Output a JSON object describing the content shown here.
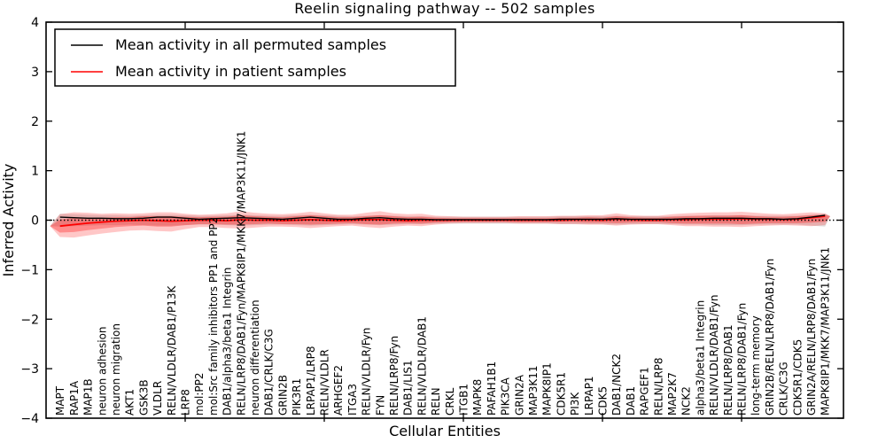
{
  "chart_data": {
    "type": "line",
    "title": "Reelin signaling pathway -- 502 samples",
    "xlabel": "Cellular Entities",
    "ylabel": "Inferred Activity",
    "ylim": [
      -4,
      4
    ],
    "yticks": [
      "4",
      "3",
      "2",
      "1",
      "0",
      "−1",
      "−2",
      "−3",
      "−4"
    ],
    "ytick_values": [
      4,
      3,
      2,
      1,
      0,
      -1,
      -2,
      -3,
      -4
    ],
    "xtick_values": [
      10,
      20,
      30,
      40,
      50
    ],
    "grid": false,
    "legend_position": "upper left",
    "zero_line": "dotted",
    "categories": [
      "MAPT",
      "RAP1A",
      "MAP1B",
      "neuron adhesion",
      "neuron migration",
      "AKT1",
      "GSK3B",
      "VLDLR",
      "RELN/VLDLR/DAB1/P13K",
      "LRP8",
      "mol:PP2",
      "mol:Src family inhibitors PP1 and PP2",
      "DAB1/alpha3/beta1 Integrin",
      "RELN/LRP8/DAB1/Fyn/MAPK8IP1/MKK7/MAP3K11/JNK1",
      "neuron differentiation",
      "DAB1/CRLK/C3G",
      "GRIN2B",
      "PIK3R1",
      "LRPAP1/LRP8",
      "RELN/VLDLR",
      "ARHGEF2",
      "ITGA3",
      "RELN/VLDLR/Fyn",
      "FYN",
      "RELN/LRP8/Fyn",
      "DAB1/LIS1",
      "RELN/VLDLR/DAB1",
      "RELN",
      "CRKL",
      "ITGB1",
      "MAPK8",
      "PAFAH1B1",
      "PIK3CA",
      "GRIN2A",
      "MAP3K11",
      "MAPK8IP1",
      "CDK5R1",
      "PI3K",
      "LRPAP1",
      "CDK5",
      "DAB1/NCK2",
      "DAB1",
      "RAPGEF1",
      "RELN/LRP8",
      "MAP2K7",
      "NCK2",
      "alpha3/beta1 Integrin",
      "RELN/VLDLR/DAB1/Fyn",
      "RELN/LRP8/DAB1",
      "RELN/LRP8/DAB1/Fyn",
      "long-term memory",
      "GRIN2B/RELN/LRP8/DAB1/Fyn",
      "CRLK/C3G",
      "CDK5R1/CDK5",
      "GRIN2A/RELN/LRP8/DAB1/Fyn",
      "MAPK8IP1/MKK7/MAP3K11/JNK1"
    ],
    "series": [
      {
        "name": "Mean activity in all permuted samples",
        "color": "#000000",
        "values": [
          0.06,
          0.05,
          0.04,
          0.04,
          0.03,
          0.03,
          0.04,
          0.06,
          0.06,
          0.04,
          0.02,
          0.03,
          0.04,
          0.05,
          0.04,
          0.03,
          0.02,
          0.04,
          0.06,
          0.04,
          0.02,
          0.02,
          0.04,
          0.05,
          0.03,
          0.02,
          0.02,
          0.01,
          0.01,
          0.01,
          0.01,
          0.01,
          0.01,
          0.01,
          0.01,
          0.01,
          0.02,
          0.02,
          0.02,
          0.02,
          0.03,
          0.02,
          0.02,
          0.02,
          0.02,
          0.03,
          0.03,
          0.04,
          0.04,
          0.04,
          0.03,
          0.03,
          0.02,
          0.03,
          0.06,
          0.1
        ]
      },
      {
        "name": "Mean activity in patient samples",
        "color": "#ff0000",
        "values": [
          -0.12,
          -0.09,
          -0.06,
          -0.04,
          -0.02,
          -0.01,
          0.0,
          -0.01,
          -0.02,
          -0.01,
          0.0,
          0.0,
          -0.01,
          0.01,
          0.0,
          0.0,
          -0.01,
          0.0,
          0.01,
          0.0,
          -0.01,
          0.0,
          0.01,
          0.01,
          0.0,
          -0.01,
          0.0,
          0.0,
          0.0,
          0.0,
          0.0,
          0.0,
          0.0,
          0.0,
          0.0,
          0.0,
          0.0,
          0.01,
          0.01,
          0.0,
          0.02,
          0.01,
          0.0,
          0.0,
          0.01,
          0.01,
          0.02,
          0.02,
          0.02,
          0.03,
          0.02,
          0.02,
          0.01,
          0.02,
          0.05,
          0.08
        ]
      }
    ],
    "patient_band_outer_upper": [
      0.12,
      0.16,
      0.15,
      0.13,
      0.14,
      0.13,
      0.14,
      0.16,
      0.16,
      0.13,
      0.11,
      0.12,
      0.14,
      0.18,
      0.15,
      0.13,
      0.12,
      0.14,
      0.17,
      0.14,
      0.11,
      0.11,
      0.15,
      0.18,
      0.14,
      0.12,
      0.13,
      0.09,
      0.08,
      0.07,
      0.07,
      0.07,
      0.07,
      0.08,
      0.08,
      0.08,
      0.09,
      0.09,
      0.1,
      0.1,
      0.14,
      0.1,
      0.09,
      0.09,
      0.12,
      0.14,
      0.15,
      0.16,
      0.16,
      0.17,
      0.15,
      0.13,
      0.12,
      0.14,
      0.16,
      0.14
    ],
    "patient_band_outer_lower": [
      -0.34,
      -0.35,
      -0.31,
      -0.27,
      -0.24,
      -0.21,
      -0.2,
      -0.22,
      -0.23,
      -0.18,
      -0.14,
      -0.14,
      -0.16,
      -0.17,
      -0.15,
      -0.13,
      -0.13,
      -0.14,
      -0.16,
      -0.14,
      -0.12,
      -0.11,
      -0.14,
      -0.16,
      -0.13,
      -0.11,
      -0.12,
      -0.09,
      -0.07,
      -0.06,
      -0.06,
      -0.06,
      -0.06,
      -0.07,
      -0.07,
      -0.07,
      -0.08,
      -0.08,
      -0.09,
      -0.09,
      -0.11,
      -0.09,
      -0.08,
      -0.08,
      -0.1,
      -0.12,
      -0.12,
      -0.13,
      -0.13,
      -0.14,
      -0.12,
      -0.11,
      -0.1,
      -0.11,
      -0.12,
      -0.1
    ],
    "patient_band_inner_upper": [
      0.01,
      0.05,
      0.05,
      0.05,
      0.06,
      0.06,
      0.08,
      0.08,
      0.08,
      0.07,
      0.06,
      0.07,
      0.07,
      0.1,
      0.08,
      0.07,
      0.06,
      0.08,
      0.1,
      0.08,
      0.06,
      0.06,
      0.08,
      0.1,
      0.08,
      0.06,
      0.07,
      0.05,
      0.04,
      0.04,
      0.04,
      0.04,
      0.04,
      0.04,
      0.04,
      0.04,
      0.05,
      0.05,
      0.06,
      0.05,
      0.08,
      0.06,
      0.05,
      0.05,
      0.07,
      0.08,
      0.09,
      0.09,
      0.09,
      0.1,
      0.08,
      0.07,
      0.07,
      0.08,
      0.1,
      0.11
    ],
    "patient_band_inner_lower": [
      -0.25,
      -0.24,
      -0.2,
      -0.17,
      -0.14,
      -0.12,
      -0.11,
      -0.13,
      -0.13,
      -0.1,
      -0.08,
      -0.08,
      -0.09,
      -0.09,
      -0.08,
      -0.07,
      -0.08,
      -0.08,
      -0.09,
      -0.08,
      -0.07,
      -0.06,
      -0.08,
      -0.09,
      -0.07,
      -0.06,
      -0.07,
      -0.05,
      -0.04,
      -0.03,
      -0.03,
      -0.03,
      -0.03,
      -0.04,
      -0.04,
      -0.04,
      -0.04,
      -0.04,
      -0.05,
      -0.05,
      -0.06,
      -0.05,
      -0.04,
      -0.04,
      -0.06,
      -0.07,
      -0.07,
      -0.07,
      -0.07,
      -0.08,
      -0.07,
      -0.06,
      -0.06,
      -0.06,
      -0.05,
      -0.03
    ],
    "permuted_band_upper": [
      0.13,
      0.12,
      0.11,
      0.1,
      0.1,
      0.09,
      0.1,
      0.11,
      0.11,
      0.1,
      0.09,
      0.09,
      0.1,
      0.11,
      0.1,
      0.09,
      0.09,
      0.1,
      0.11,
      0.1,
      0.09,
      0.08,
      0.09,
      0.1,
      0.09,
      0.08,
      0.08,
      0.07,
      0.07,
      0.07,
      0.07,
      0.07,
      0.07,
      0.07,
      0.07,
      0.07,
      0.08,
      0.08,
      0.08,
      0.08,
      0.09,
      0.08,
      0.08,
      0.08,
      0.08,
      0.09,
      0.09,
      0.1,
      0.1,
      0.1,
      0.09,
      0.09,
      0.09,
      0.09,
      0.11,
      0.13
    ],
    "permuted_band_lower": [
      -0.13,
      -0.12,
      -0.11,
      -0.1,
      -0.1,
      -0.09,
      -0.1,
      -0.11,
      -0.11,
      -0.1,
      -0.09,
      -0.09,
      -0.1,
      -0.11,
      -0.1,
      -0.09,
      -0.09,
      -0.1,
      -0.11,
      -0.1,
      -0.09,
      -0.08,
      -0.09,
      -0.1,
      -0.09,
      -0.08,
      -0.08,
      -0.07,
      -0.07,
      -0.07,
      -0.07,
      -0.07,
      -0.07,
      -0.07,
      -0.07,
      -0.07,
      -0.08,
      -0.08,
      -0.08,
      -0.08,
      -0.09,
      -0.08,
      -0.08,
      -0.08,
      -0.08,
      -0.09,
      -0.09,
      -0.1,
      -0.1,
      -0.1,
      -0.09,
      -0.09,
      -0.09,
      -0.09,
      -0.11,
      -0.13
    ]
  },
  "legend": {
    "items": [
      {
        "label": "Mean activity in all permuted samples",
        "color": "#000000"
      },
      {
        "label": "Mean activity in patient samples",
        "color": "#ff0000"
      }
    ]
  },
  "colors": {
    "frame": "#000000",
    "red_line": "#ff0000",
    "black_line": "#000000",
    "red_band": "#ff0000",
    "red_band_outer_opacity": "0.22",
    "red_band_inner_opacity": "0.30",
    "gray_band": "#999999",
    "gray_band_opacity": "0.30",
    "background": "#ffffff"
  }
}
